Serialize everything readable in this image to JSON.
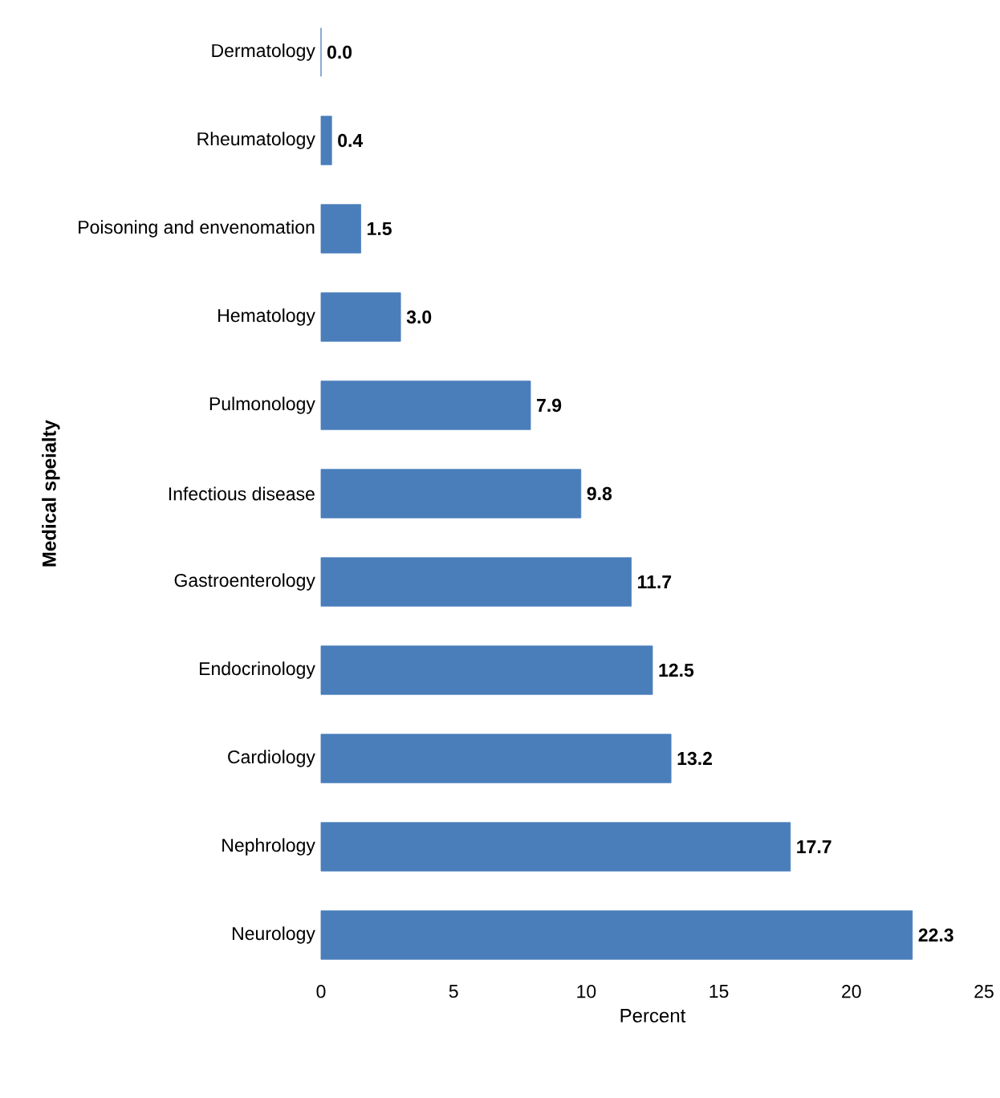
{
  "chart_data": {
    "type": "bar",
    "orientation": "horizontal",
    "xlabel": "Percent",
    "ylabel": "Medical speialty",
    "categories": [
      "Dermatology",
      "Rheumatology",
      "Poisoning and envenomation",
      "Hematology",
      "Pulmonology",
      "Infectious disease",
      "Gastroenterology",
      "Endocrinology",
      "Cardiology",
      "Nephrology",
      "Neurology"
    ],
    "values": [
      0.0,
      0.4,
      1.5,
      3.0,
      7.9,
      9.8,
      11.7,
      12.5,
      13.2,
      17.7,
      22.3
    ],
    "value_labels": [
      "0.0",
      "0.4",
      "1.5",
      "3.0",
      "7.9",
      "9.8",
      "11.7",
      "12.5",
      "13.2",
      "17.7",
      "22.3"
    ],
    "color": "#4a7ebb",
    "xlim": [
      0,
      25
    ],
    "xticks": [
      0,
      5,
      10,
      15,
      20,
      25
    ],
    "grid": false
  }
}
